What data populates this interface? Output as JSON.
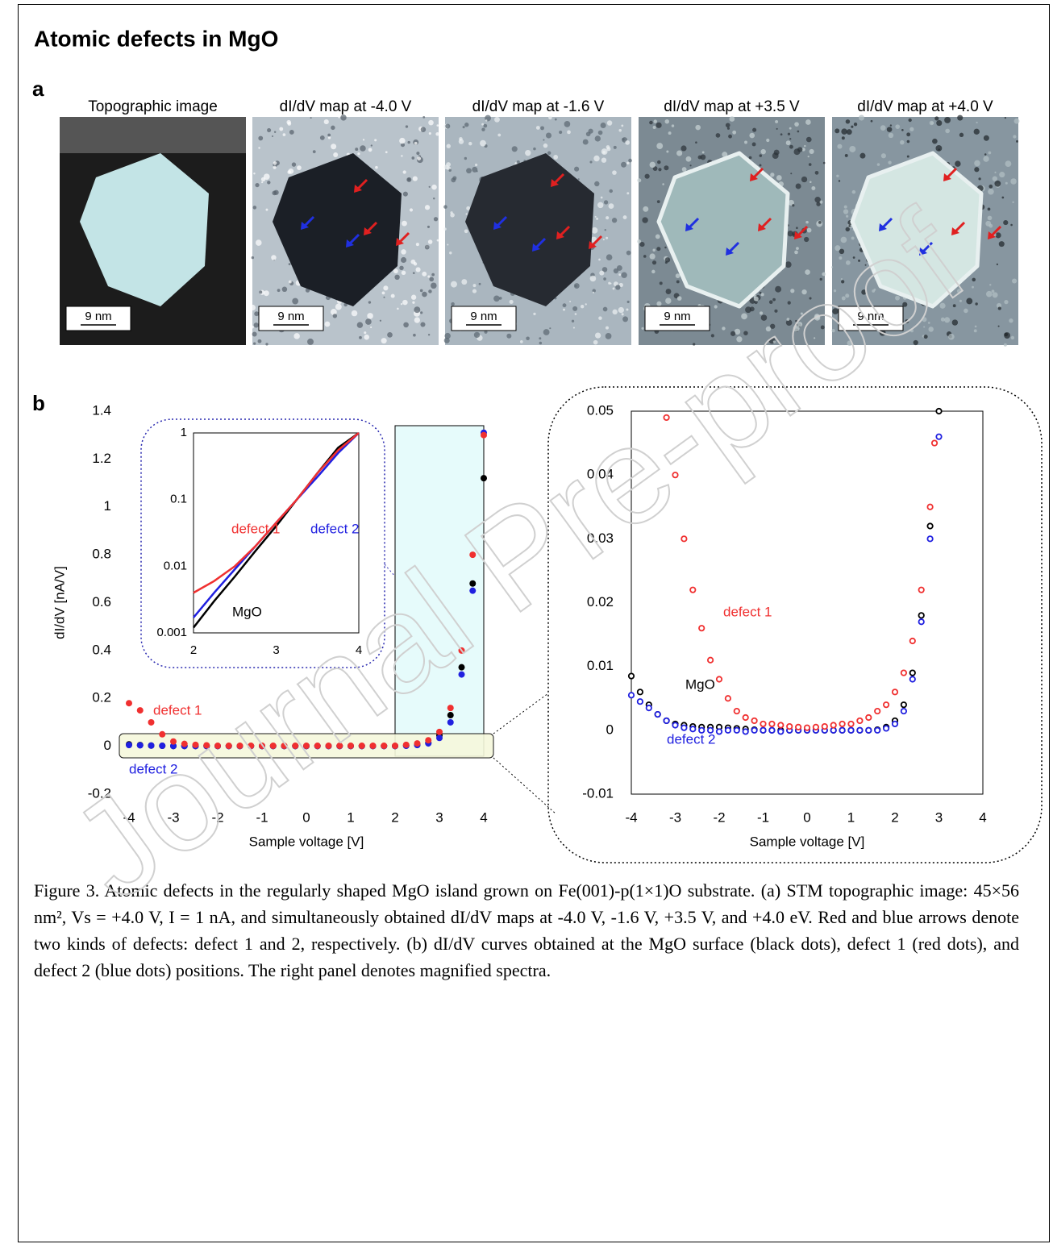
{
  "title": "Atomic defects in MgO",
  "watermark": "Journal Pre-proof",
  "panel_a": {
    "label": "a",
    "images": [
      {
        "caption": "Topographic image",
        "scale_bar": "9 nm"
      },
      {
        "caption": "dI/dV map at -4.0 V",
        "scale_bar": "9 nm"
      },
      {
        "caption": "dI/dV map at -1.6 V",
        "scale_bar": "9 nm"
      },
      {
        "caption": "dI/dV map at +3.5 V",
        "scale_bar": "9 nm"
      },
      {
        "caption": "dI/dV map at +4.0 V",
        "scale_bar": "9 nm"
      }
    ]
  },
  "panel_b": {
    "label": "b"
  },
  "chart_data": [
    {
      "type": "scatter",
      "x_label": "Sample voltage [V]",
      "y_label": "dI/dV [nA/V]",
      "x": [
        -4,
        -3.75,
        -3.5,
        -3.25,
        -3,
        -2.75,
        -2.5,
        -2.25,
        -2,
        -1.75,
        -1.5,
        -1.25,
        -1,
        -0.75,
        -0.5,
        -0.25,
        0,
        0.25,
        0.5,
        0.75,
        1,
        1.25,
        1.5,
        1.75,
        2,
        2.25,
        2.5,
        2.75,
        3,
        3.25,
        3.5,
        3.75,
        4
      ],
      "xlim": [
        -4,
        4
      ],
      "xticks": [
        -4,
        -3,
        -2,
        -1,
        0,
        1,
        2,
        3,
        4
      ],
      "ylim": [
        -0.2,
        1.4
      ],
      "yticks": [
        -0.2,
        0,
        0.2,
        0.4,
        0.6,
        0.8,
        1,
        1.2,
        1.4
      ],
      "series": [
        {
          "color": "#000000",
          "values": [
            0.008,
            0.005,
            0.003,
            0.002,
            0.001,
            0.001,
            0.001,
            0.001,
            0.001,
            0.001,
            0.001,
            0.001,
            0.001,
            0.001,
            0.001,
            0.001,
            0.001,
            0.001,
            0.001,
            0.001,
            0.001,
            0.001,
            0.001,
            0.001,
            0.001,
            0.003,
            0.006,
            0.015,
            0.045,
            0.13,
            0.33,
            0.68,
            1.12
          ]
        },
        {
          "name": "defect 2",
          "color": "#2020e0",
          "values": [
            0.005,
            0.004,
            0.003,
            0.002,
            0.001,
            0.001,
            0.001,
            0.001,
            0.001,
            0.001,
            0.001,
            0.001,
            0.001,
            0.001,
            0.001,
            0.001,
            0.001,
            0.001,
            0.001,
            0.001,
            0.001,
            0.001,
            0.001,
            0.001,
            0.001,
            0.002,
            0.005,
            0.012,
            0.035,
            0.1,
            0.3,
            0.65,
            1.31
          ]
        },
        {
          "name": "defect 1",
          "color": "#f03030",
          "values": [
            0.18,
            0.15,
            0.1,
            0.05,
            0.02,
            0.01,
            0.006,
            0.004,
            0.002,
            0.002,
            0.002,
            0.002,
            0.002,
            0.002,
            0.002,
            0.002,
            0.002,
            0.002,
            0.002,
            0.002,
            0.002,
            0.002,
            0.002,
            0.002,
            0.002,
            0.006,
            0.012,
            0.025,
            0.06,
            0.16,
            0.4,
            0.8,
            1.3
          ]
        }
      ]
    },
    {
      "type": "line",
      "log_y": true,
      "x": [
        2,
        2.25,
        2.5,
        2.75,
        3,
        3.25,
        3.5,
        3.75,
        4
      ],
      "xlim": [
        2,
        4
      ],
      "xticks": [
        2,
        3,
        4
      ],
      "ylim": [
        0.001,
        1
      ],
      "yticks": [
        0.001,
        0.01,
        0.1,
        1
      ],
      "series": [
        {
          "name": "MgO",
          "color": "#000000",
          "values": [
            0.0012,
            0.003,
            0.007,
            0.017,
            0.04,
            0.1,
            0.25,
            0.6,
            1
          ]
        },
        {
          "name": "defect 2",
          "color": "#2020e0",
          "values": [
            0.0017,
            0.004,
            0.009,
            0.02,
            0.045,
            0.1,
            0.22,
            0.5,
            1
          ]
        },
        {
          "name": "defect 1",
          "color": "#f03030",
          "values": [
            0.004,
            0.006,
            0.01,
            0.02,
            0.045,
            0.1,
            0.25,
            0.55,
            1
          ]
        }
      ]
    },
    {
      "type": "scatter",
      "x_label": "Sample voltage [V]",
      "xlim": [
        -4,
        4
      ],
      "xticks": [
        -4,
        -3,
        -2,
        -1,
        0,
        1,
        2,
        3,
        4
      ],
      "ylim": [
        -0.01,
        0.05
      ],
      "yticks": [
        -0.01,
        0,
        0.01,
        0.02,
        0.03,
        0.04,
        0.05
      ],
      "series": [
        {
          "name": "MgO",
          "color": "#000000",
          "x": [
            -4,
            -3.8,
            -3.6,
            -3.4,
            -3.2,
            -3,
            -2.8,
            -2.6,
            -2.4,
            -2.2,
            -2,
            -1.8,
            -1.6,
            -1.4,
            -1.2,
            -1,
            -0.8,
            -0.6,
            -0.4,
            -0.2,
            0,
            0.2,
            0.4,
            0.6,
            0.8,
            1,
            1.2,
            1.4,
            1.6,
            1.8,
            2,
            2.2,
            2.4,
            2.6,
            2.8,
            3
          ],
          "values": [
            0.0085,
            0.006,
            0.004,
            0.0025,
            0.0015,
            0.001,
            0.0008,
            0.0006,
            0.0005,
            0.0005,
            0.0005,
            0.0004,
            0.0003,
            0.0002,
            0.0001,
            0,
            0,
            0,
            0,
            0,
            0,
            0,
            0,
            0,
            0,
            0,
            0,
            0,
            0.0001,
            0.0005,
            0.0015,
            0.004,
            0.009,
            0.018,
            0.032,
            0.05
          ]
        },
        {
          "name": "defect 2",
          "color": "#2020e0",
          "x": [
            -4,
            -3.8,
            -3.6,
            -3.4,
            -3.2,
            -3,
            -2.8,
            -2.6,
            -2.4,
            -2.2,
            -2,
            -1.8,
            -1.6,
            -1.4,
            -1.2,
            -1,
            -0.8,
            -0.6,
            -0.4,
            -0.2,
            0,
            0.2,
            0.4,
            0.6,
            0.8,
            1,
            1.2,
            1.4,
            1.6,
            1.8,
            2,
            2.2,
            2.4,
            2.6,
            2.8,
            3
          ],
          "values": [
            0.0055,
            0.0045,
            0.0035,
            0.0025,
            0.0015,
            0.0008,
            0.0004,
            0.0002,
            0,
            0,
            -0.0002,
            0,
            0,
            -0.0002,
            0,
            0,
            0,
            -0.0002,
            0,
            0,
            0,
            0,
            0,
            0,
            0,
            0,
            0,
            0,
            0,
            0.0003,
            0.001,
            0.003,
            0.008,
            0.017,
            0.03,
            0.046
          ]
        },
        {
          "name": "defect 1",
          "color": "#f03030",
          "x": [
            -3.2,
            -3,
            -2.8,
            -2.6,
            -2.4,
            -2.2,
            -2,
            -1.8,
            -1.6,
            -1.4,
            -1.2,
            -1,
            -0.8,
            -0.6,
            -0.4,
            -0.2,
            0,
            0.2,
            0.4,
            0.6,
            0.8,
            1,
            1.2,
            1.4,
            1.6,
            1.8,
            2,
            2.2,
            2.4,
            2.6,
            2.8,
            2.9
          ],
          "values": [
            0.049,
            0.04,
            0.03,
            0.022,
            0.016,
            0.011,
            0.008,
            0.005,
            0.003,
            0.002,
            0.0015,
            0.001,
            0.001,
            0.0008,
            0.0006,
            0.0005,
            0.0004,
            0.0005,
            0.0006,
            0.0008,
            0.001,
            0.001,
            0.0015,
            0.002,
            0.003,
            0.004,
            0.006,
            0.009,
            0.014,
            0.022,
            0.035,
            0.045
          ]
        }
      ]
    }
  ],
  "caption": "Figure 3. Atomic defects in the regularly shaped MgO island grown on Fe(001)-p(1×1)O substrate. (a) STM topographic image: 45×56 nm², Vs = +4.0 V, I = 1 nA, and simultaneously obtained dI/dV maps at -4.0 V, -1.6 V, +3.5 V, and +4.0 eV. Red and blue arrows denote two kinds of defects: defect 1 and 2, respectively. (b) dI/dV curves obtained at the MgO surface (black dots), defect 1 (red dots), and defect 2 (blue dots) positions. The right panel denotes magnified spectra."
}
